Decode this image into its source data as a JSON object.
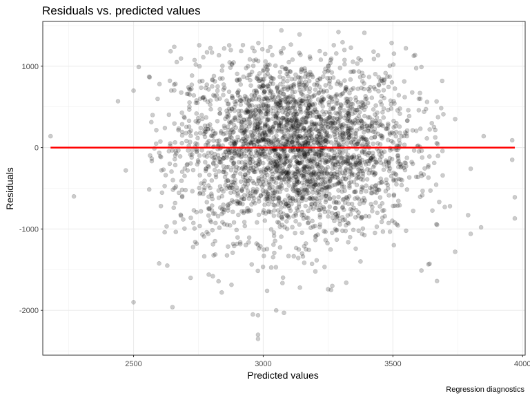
{
  "chart_data": {
    "type": "scatter",
    "title": "Residuals vs. predicted values",
    "xlabel": "Predicted values",
    "ylabel": "Residuals",
    "caption": "Regression diagnostics",
    "xlim": [
      2150,
      4010
    ],
    "ylim": [
      -2550,
      1550
    ],
    "x_ticks": [
      2500,
      3000,
      3500,
      4000
    ],
    "y_ticks": [
      1000,
      0,
      -1000,
      -2000
    ],
    "x_tick_labels": [
      "2500",
      "3000",
      "3500",
      "4000"
    ],
    "y_tick_labels": [
      "1000",
      "0",
      "-1000",
      "-2000"
    ],
    "grid": true,
    "point_color": "#000000",
    "point_opacity": 0.2,
    "reference_line": {
      "y": 0,
      "x_start": 2180,
      "x_end": 3970,
      "color": "#ff0000"
    },
    "point_count": 3000,
    "cloud_center": {
      "x": 3120,
      "y": 0
    },
    "cloud_spread": {
      "x": 230,
      "y": 560
    },
    "points": [
      {
        "x": 2180,
        "y": 140
      },
      {
        "x": 2270,
        "y": -600
      },
      {
        "x": 2440,
        "y": 570
      },
      {
        "x": 2470,
        "y": -280
      },
      {
        "x": 2500,
        "y": 700
      },
      {
        "x": 2500,
        "y": -1900
      },
      {
        "x": 2520,
        "y": 990
      },
      {
        "x": 2560,
        "y": 870
      },
      {
        "x": 2600,
        "y": 780
      },
      {
        "x": 2620,
        "y": -1040
      },
      {
        "x": 2630,
        "y": -1450
      },
      {
        "x": 2650,
        "y": -1960
      },
      {
        "x": 2720,
        "y": -1600
      },
      {
        "x": 2740,
        "y": 1020
      },
      {
        "x": 2790,
        "y": -1560
      },
      {
        "x": 2840,
        "y": -1780
      },
      {
        "x": 2960,
        "y": -2050
      },
      {
        "x": 2980,
        "y": -2060
      },
      {
        "x": 2980,
        "y": -2300
      },
      {
        "x": 2980,
        "y": -2350
      },
      {
        "x": 3050,
        "y": -2000
      },
      {
        "x": 3080,
        "y": -2030
      },
      {
        "x": 3070,
        "y": 1440
      },
      {
        "x": 3140,
        "y": 1390
      },
      {
        "x": 3290,
        "y": 1420
      },
      {
        "x": 3390,
        "y": 1410
      },
      {
        "x": 3320,
        "y": -1660
      },
      {
        "x": 3250,
        "y": -1740
      },
      {
        "x": 3610,
        "y": -1510
      },
      {
        "x": 3670,
        "y": -1640
      },
      {
        "x": 3700,
        "y": -730
      },
      {
        "x": 3720,
        "y": -720
      },
      {
        "x": 3740,
        "y": -1280
      },
      {
        "x": 3790,
        "y": -830
      },
      {
        "x": 3800,
        "y": -1060
      },
      {
        "x": 3840,
        "y": -980
      },
      {
        "x": 3850,
        "y": 140
      },
      {
        "x": 3740,
        "y": 350
      },
      {
        "x": 3800,
        "y": -260
      },
      {
        "x": 3960,
        "y": 90
      },
      {
        "x": 3960,
        "y": -150
      },
      {
        "x": 3970,
        "y": -610
      },
      {
        "x": 3970,
        "y": -870
      },
      {
        "x": 3690,
        "y": 820
      },
      {
        "x": 3610,
        "y": 990
      },
      {
        "x": 3550,
        "y": 1220
      },
      {
        "x": 3600,
        "y": 600
      },
      {
        "x": 3650,
        "y": 300
      }
    ]
  }
}
